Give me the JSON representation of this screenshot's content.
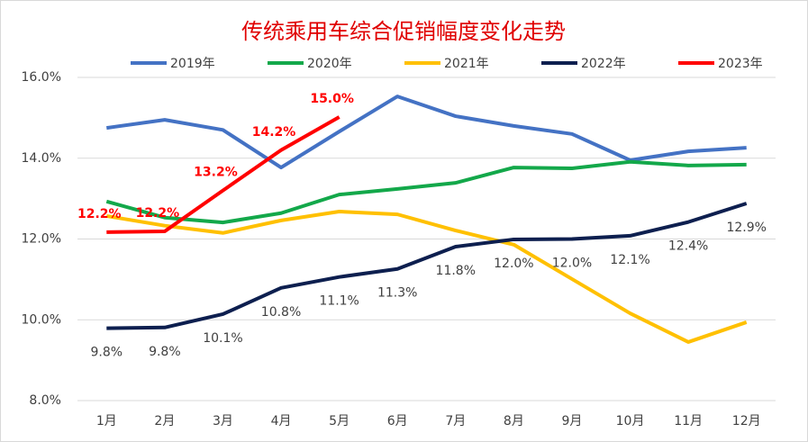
{
  "chart_data": {
    "type": "line",
    "title": "传统乘用车综合促销幅度变化走势",
    "categories": [
      "1月",
      "2月",
      "3月",
      "4月",
      "5月",
      "6月",
      "7月",
      "8月",
      "9月",
      "10月",
      "11月",
      "12月"
    ],
    "series": [
      {
        "name": "2019年",
        "color": "#4472c4",
        "values": [
          14.75,
          14.95,
          14.7,
          13.77,
          14.66,
          15.53,
          15.04,
          14.8,
          14.6,
          13.95,
          14.17,
          14.26
        ]
      },
      {
        "name": "2020年",
        "color": "#13a84a",
        "values": [
          12.93,
          12.53,
          12.41,
          12.64,
          13.1,
          13.24,
          13.39,
          13.77,
          13.75,
          13.91,
          13.82,
          13.84
        ]
      },
      {
        "name": "2021年",
        "color": "#ffc000",
        "values": [
          12.57,
          12.33,
          12.15,
          12.46,
          12.68,
          12.61,
          12.21,
          11.86,
          11.01,
          10.16,
          9.45,
          9.94
        ]
      },
      {
        "name": "2022年",
        "color": "#0d1f4f",
        "values": [
          9.79,
          9.81,
          10.14,
          10.79,
          11.06,
          11.26,
          11.81,
          11.99,
          12.0,
          12.08,
          12.42,
          12.88
        ],
        "value_labels": [
          "9.8%",
          "9.8%",
          "10.1%",
          "10.8%",
          "11.1%",
          "11.3%",
          "11.8%",
          "12.0%",
          "12.0%",
          "12.1%",
          "12.4%",
          "12.9%"
        ]
      },
      {
        "name": "2023年",
        "color": "#ff0000",
        "values": [
          12.17,
          12.19,
          13.2,
          14.2,
          15.02,
          null,
          null,
          null,
          null,
          null,
          null,
          null
        ],
        "value_labels": [
          "12.2%",
          "12.2%",
          "13.2%",
          "14.2%",
          "15.0%",
          null,
          null,
          null,
          null,
          null,
          null,
          null
        ]
      }
    ],
    "ylim": [
      8,
      16
    ],
    "yticks": [
      {
        "value": 8,
        "label": "8.0%"
      },
      {
        "value": 10,
        "label": "10.0%"
      },
      {
        "value": 12,
        "label": "12.0%"
      },
      {
        "value": 14,
        "label": "14.0%"
      },
      {
        "value": 16,
        "label": "16.0%"
      }
    ],
    "grid": true
  }
}
